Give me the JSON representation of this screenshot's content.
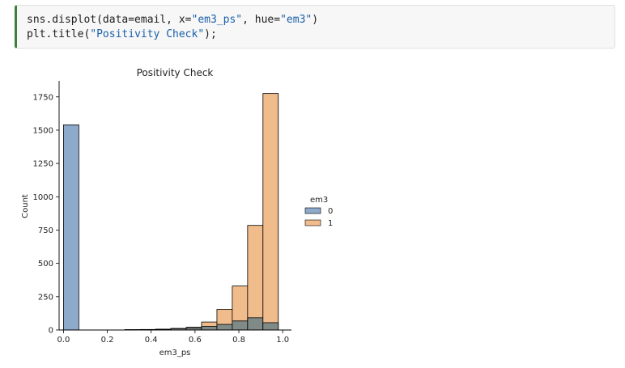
{
  "cell": {
    "code_lines": [
      [
        {
          "t": "sns.displot(data=email, x=",
          "c": "plain"
        },
        {
          "t": "\"em3_ps\"",
          "c": "str"
        },
        {
          "t": ", hue=",
          "c": "plain"
        },
        {
          "t": "\"em3\"",
          "c": "str"
        },
        {
          "t": ")",
          "c": "plain"
        }
      ],
      [
        {
          "t": "plt.title(",
          "c": "plain"
        },
        {
          "t": "\"Positivity Check\"",
          "c": "str"
        },
        {
          "t": ");",
          "c": "plain"
        }
      ]
    ]
  },
  "chart_data": {
    "type": "bar",
    "title": "Positivity Check",
    "xlabel": "em3_ps",
    "ylabel": "Count",
    "xlim": [
      -0.02,
      1.04
    ],
    "ylim": [
      0,
      1870
    ],
    "xticks": [
      "0.0",
      "0.2",
      "0.4",
      "0.6",
      "0.8",
      "1.0"
    ],
    "xtick_values": [
      0.0,
      0.2,
      0.4,
      0.6,
      0.8,
      1.0
    ],
    "yticks": [
      "0",
      "250",
      "500",
      "750",
      "1000",
      "1250",
      "1500",
      "1750"
    ],
    "ytick_values": [
      0,
      250,
      500,
      750,
      1000,
      1250,
      1500,
      1750
    ],
    "bin_edges": [
      0.0,
      0.07,
      0.14,
      0.21,
      0.28,
      0.35,
      0.42,
      0.49,
      0.56,
      0.63,
      0.7,
      0.77,
      0.84,
      0.91,
      0.98
    ],
    "legend_title": "em3",
    "legend_position": "right",
    "series": [
      {
        "name": "0",
        "color": "#8eaacb",
        "values": [
          1540,
          0,
          0,
          0,
          3,
          3,
          5,
          10,
          15,
          28,
          42,
          68,
          92,
          55
        ]
      },
      {
        "name": "1",
        "color": "#f1bc8c",
        "values": [
          0,
          0,
          0,
          0,
          2,
          4,
          6,
          12,
          20,
          60,
          155,
          330,
          785,
          1775
        ]
      }
    ],
    "overlap_color": "#808a86"
  }
}
